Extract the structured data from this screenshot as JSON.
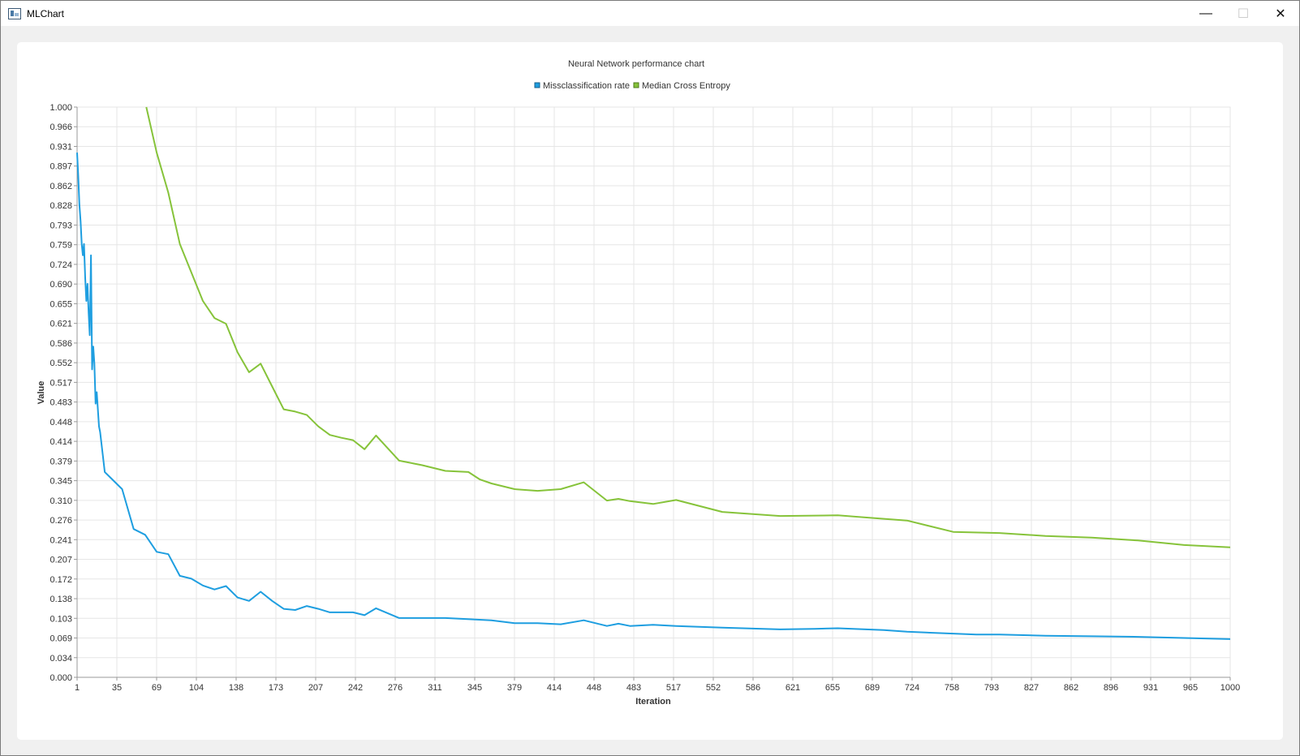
{
  "window": {
    "title": "MLChart",
    "minimize_glyph": "—",
    "maximize_glyph": "☐",
    "close_glyph": "✕",
    "icon": "app-window-icon"
  },
  "chart_data": {
    "type": "line",
    "title": "Neural Network performance chart",
    "xlabel": "Iteration",
    "ylabel": "Value",
    "xlim": [
      1,
      1000
    ],
    "ylim": [
      0,
      1
    ],
    "grid": true,
    "legend_position": "top-center",
    "x_ticks": [
      "1",
      "35",
      "69",
      "104",
      "138",
      "173",
      "207",
      "242",
      "276",
      "311",
      "345",
      "379",
      "414",
      "448",
      "483",
      "517",
      "552",
      "586",
      "621",
      "655",
      "689",
      "724",
      "758",
      "793",
      "827",
      "862",
      "896",
      "931",
      "965",
      "1000"
    ],
    "y_ticks": [
      "0.000",
      "0.034",
      "0.069",
      "0.103",
      "0.138",
      "0.172",
      "0.207",
      "0.241",
      "0.276",
      "0.310",
      "0.345",
      "0.379",
      "0.414",
      "0.448",
      "0.483",
      "0.517",
      "0.552",
      "0.586",
      "0.621",
      "0.655",
      "0.690",
      "0.724",
      "0.759",
      "0.793",
      "0.828",
      "0.862",
      "0.897",
      "0.931",
      "0.966",
      "1.000"
    ],
    "series": [
      {
        "name": "Missclassification rate",
        "color": "#1e9ee0",
        "x": [
          1,
          2,
          3,
          4,
          5,
          6,
          7,
          8,
          9,
          10,
          11,
          12,
          13,
          14,
          15,
          16,
          17,
          18,
          19,
          20,
          21,
          25,
          30,
          40,
          50,
          60,
          70,
          80,
          90,
          100,
          110,
          120,
          130,
          140,
          150,
          160,
          170,
          180,
          190,
          200,
          210,
          220,
          230,
          240,
          250,
          260,
          280,
          320,
          360,
          380,
          400,
          420,
          440,
          460,
          470,
          480,
          500,
          520,
          560,
          610,
          640,
          660,
          700,
          720,
          780,
          800,
          840,
          880,
          920,
          960,
          1000
        ],
        "y": [
          0.92,
          0.88,
          0.83,
          0.8,
          0.76,
          0.74,
          0.76,
          0.7,
          0.66,
          0.69,
          0.64,
          0.6,
          0.74,
          0.54,
          0.58,
          0.55,
          0.48,
          0.5,
          0.47,
          0.44,
          0.43,
          0.36,
          0.35,
          0.33,
          0.26,
          0.25,
          0.22,
          0.216,
          0.178,
          0.173,
          0.161,
          0.154,
          0.16,
          0.14,
          0.134,
          0.15,
          0.134,
          0.12,
          0.118,
          0.125,
          0.12,
          0.114,
          0.114,
          0.114,
          0.109,
          0.121,
          0.104,
          0.104,
          0.1,
          0.095,
          0.095,
          0.093,
          0.1,
          0.09,
          0.094,
          0.09,
          0.092,
          0.09,
          0.087,
          0.084,
          0.085,
          0.086,
          0.083,
          0.08,
          0.075,
          0.075,
          0.073,
          0.072,
          0.071,
          0.069,
          0.067
        ]
      },
      {
        "name": "Median Cross Entropy",
        "color": "#86c33a",
        "x": [
          61,
          70,
          80,
          90,
          100,
          110,
          120,
          130,
          140,
          150,
          160,
          170,
          180,
          190,
          200,
          210,
          220,
          230,
          240,
          250,
          260,
          280,
          300,
          320,
          340,
          350,
          360,
          380,
          400,
          420,
          440,
          460,
          470,
          480,
          500,
          520,
          560,
          610,
          660,
          700,
          720,
          760,
          800,
          840,
          880,
          920,
          960,
          1000
        ],
        "y": [
          1.0,
          0.92,
          0.85,
          0.76,
          0.71,
          0.66,
          0.63,
          0.62,
          0.57,
          0.535,
          0.55,
          0.51,
          0.47,
          0.466,
          0.46,
          0.44,
          0.425,
          0.42,
          0.416,
          0.4,
          0.424,
          0.38,
          0.372,
          0.362,
          0.36,
          0.347,
          0.34,
          0.33,
          0.327,
          0.33,
          0.342,
          0.31,
          0.313,
          0.309,
          0.304,
          0.311,
          0.29,
          0.283,
          0.284,
          0.278,
          0.275,
          0.255,
          0.253,
          0.248,
          0.245,
          0.24,
          0.232,
          0.228
        ]
      }
    ]
  }
}
